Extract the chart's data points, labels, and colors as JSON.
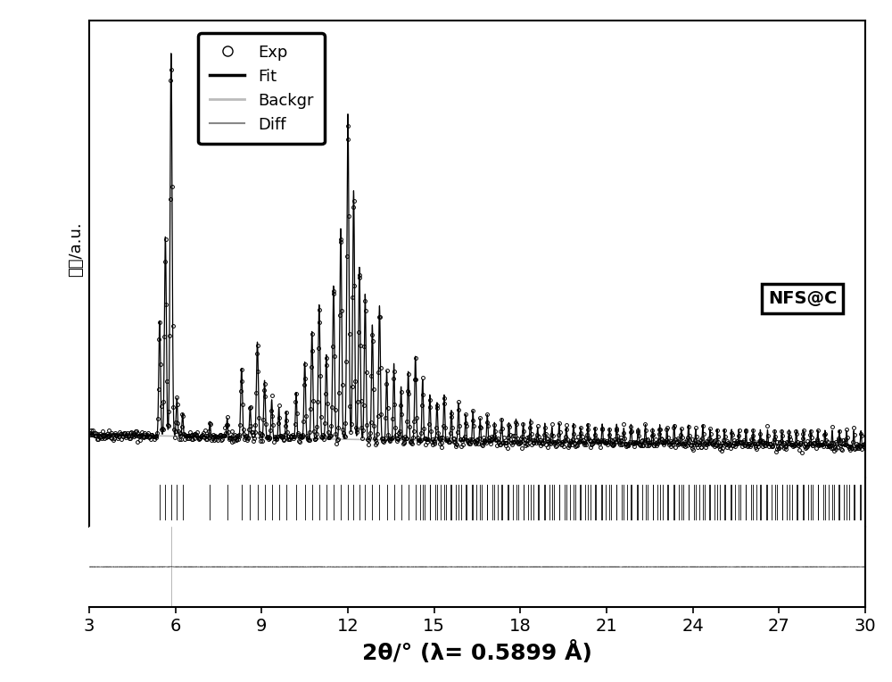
{
  "xlabel": "2θ/° (λ= 0.5899 Å)",
  "ylabel": "强度/a.u.",
  "xlim": [
    3,
    30
  ],
  "xticks": [
    3,
    6,
    9,
    12,
    15,
    18,
    21,
    24,
    27,
    30
  ],
  "xtick_labels": [
    "3",
    "6",
    "9",
    "12",
    "15",
    "18",
    "21",
    "24",
    "27",
    "30"
  ],
  "legend_labels": [
    "Exp",
    "Fit",
    "Backgr",
    "Diff"
  ],
  "annotation": "NFS@C",
  "exp_color": "#000000",
  "fit_color": "#000000",
  "backgr_color": "#bbbbbb",
  "diff_color": "#888888",
  "xlabel_fontsize": 18,
  "ylabel_fontsize": 13,
  "tick_label_fontsize": 14,
  "legend_fontsize": 13,
  "annot_fontsize": 14
}
